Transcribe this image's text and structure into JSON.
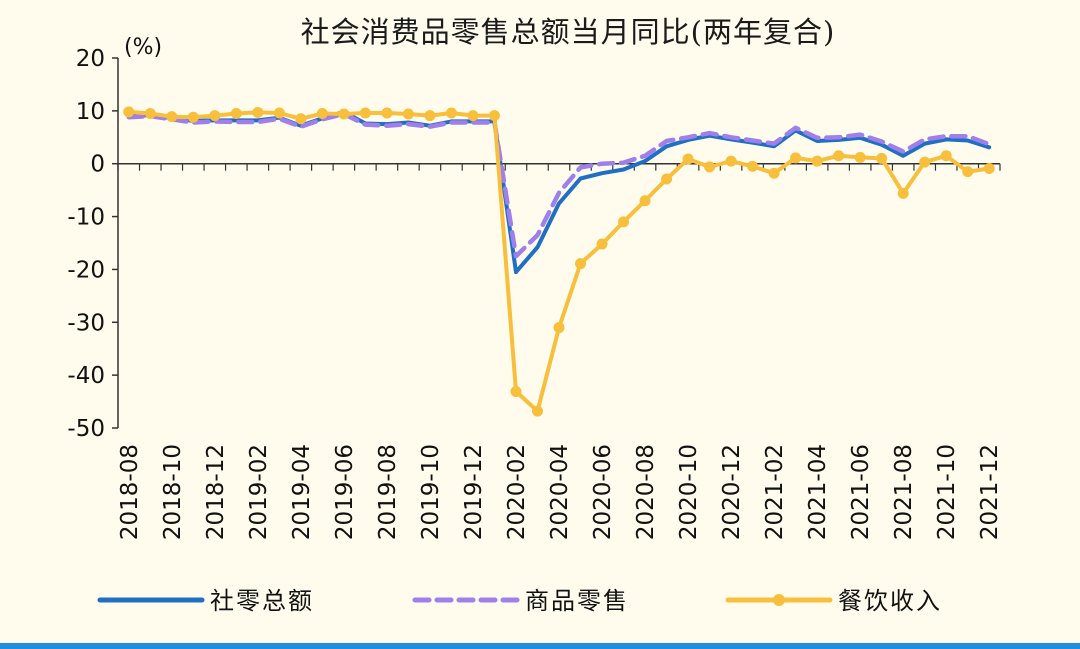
{
  "chart_data": {
    "type": "line",
    "title": "社会消费品零售总额当月同比(两年复合)",
    "ylabel": "(%)",
    "xlabel": "",
    "ylim": [
      -50,
      20
    ],
    "yticks": [
      20,
      10,
      0,
      -10,
      -20,
      -30,
      -40,
      -50
    ],
    "x": [
      "2018-08",
      "2018-09",
      "2018-10",
      "2018-11",
      "2018-12",
      "2019-01",
      "2019-02",
      "2019-03",
      "2019-04",
      "2019-05",
      "2019-06",
      "2019-07",
      "2019-08",
      "2019-09",
      "2019-10",
      "2019-11",
      "2019-12",
      "2020-01",
      "2020-02",
      "2020-03",
      "2020-04",
      "2020-05",
      "2020-06",
      "2020-07",
      "2020-08",
      "2020-09",
      "2020-10",
      "2020-11",
      "2020-12",
      "2021-01",
      "2021-02",
      "2021-03",
      "2021-04",
      "2021-05",
      "2021-06",
      "2021-07",
      "2021-08",
      "2021-09",
      "2021-10",
      "2021-11",
      "2021-12"
    ],
    "xtick_labels": [
      "2018-08",
      "2018-10",
      "2018-12",
      "2019-02",
      "2019-04",
      "2019-06",
      "2019-08",
      "2019-10",
      "2019-12",
      "2020-02",
      "2020-04",
      "2020-06",
      "2020-08",
      "2020-10",
      "2020-12",
      "2021-02",
      "2021-04",
      "2021-06",
      "2021-08",
      "2021-10",
      "2021-12"
    ],
    "grid": false,
    "legend_position": "bottom",
    "series": [
      {
        "name": "社零总额",
        "color": "#1F6FC5",
        "style": "solid",
        "markers": false,
        "values": [
          9,
          9.2,
          8.6,
          8.1,
          8.2,
          8.2,
          8.2,
          8.7,
          7.2,
          8.6,
          9.8,
          7.6,
          7.5,
          7.8,
          7.2,
          8,
          8,
          8,
          -20.5,
          -15.8,
          -7.5,
          -2.8,
          -1.8,
          -1.1,
          0.5,
          3.3,
          4.5,
          5.3,
          4.6,
          4,
          3.3,
          6.3,
          4.3,
          4.5,
          4.9,
          3.6,
          1.5,
          3.8,
          4.6,
          4.4,
          3.1
        ]
      },
      {
        "name": "商品零售",
        "color": "#9F7FEA",
        "style": "dashed",
        "markers": false,
        "values": [
          8.8,
          9,
          8.4,
          7.8,
          8,
          7.9,
          7.9,
          8.5,
          7,
          8.4,
          9.4,
          7.4,
          7.2,
          7.5,
          7,
          7.8,
          7.8,
          7.8,
          -17.5,
          -13.5,
          -5.5,
          -0.7,
          0,
          0.2,
          1.5,
          4.3,
          5,
          5.8,
          5,
          4.4,
          3.8,
          6.8,
          4.9,
          5,
          5.5,
          4.2,
          2.3,
          4.6,
          5.2,
          5.2,
          3.7
        ]
      },
      {
        "name": "餐饮收入",
        "color": "#F8BF3D",
        "style": "solid",
        "markers": true,
        "values": [
          9.8,
          9.5,
          8.9,
          8.8,
          9.1,
          9.5,
          9.7,
          9.6,
          8.5,
          9.5,
          9.4,
          9.6,
          9.6,
          9.4,
          9.1,
          9.6,
          9.1,
          9.1,
          -43.1,
          -46.8,
          -31,
          -18.9,
          -15.2,
          -11,
          -7,
          -2.9,
          0.9,
          -0.6,
          0.5,
          -0.5,
          -1.8,
          1.1,
          0.5,
          1.5,
          1.2,
          1,
          -5.6,
          0.3,
          1.5,
          -1.5,
          -0.9
        ]
      }
    ]
  }
}
